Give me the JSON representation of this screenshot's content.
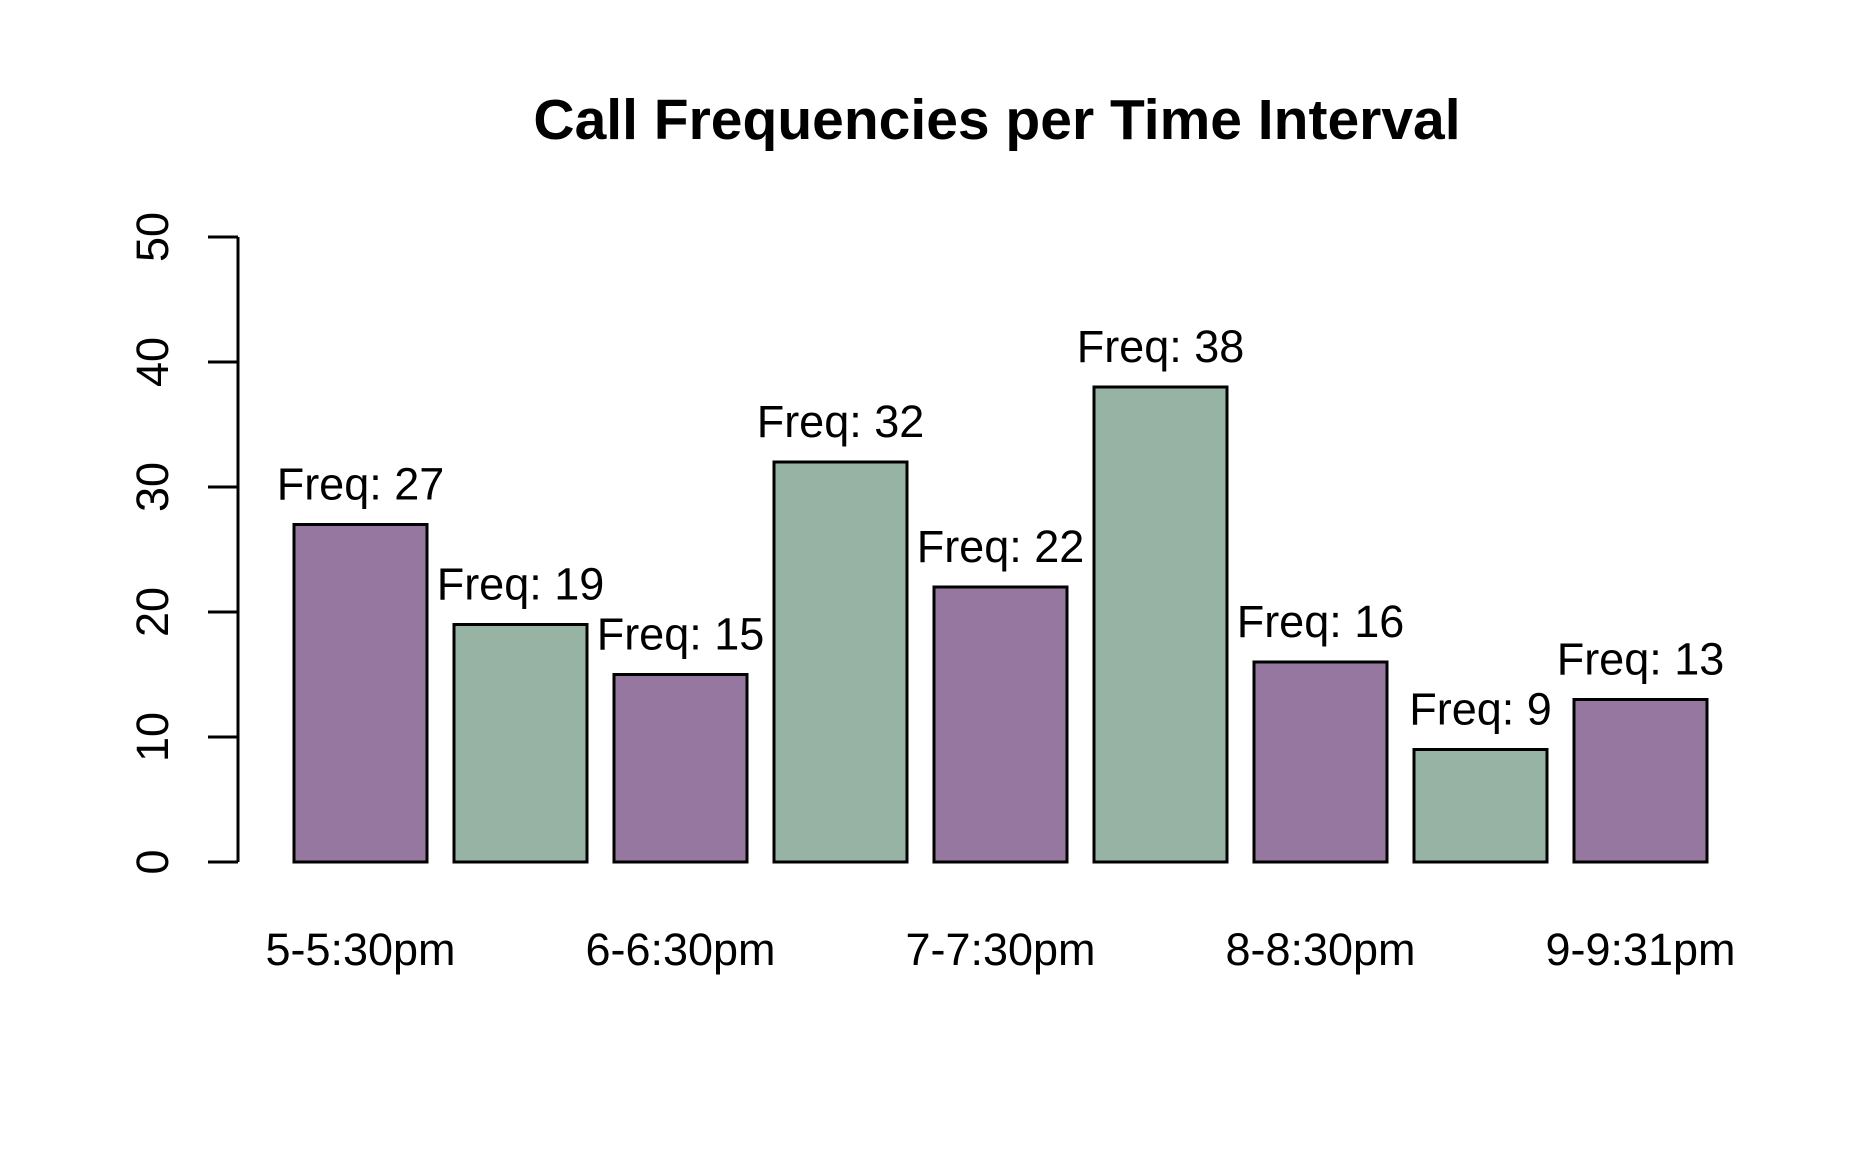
{
  "chart_data": {
    "type": "bar",
    "title": "Call Frequencies per Time Interval",
    "xlabel": "",
    "ylabel": "",
    "ylim": [
      0,
      50
    ],
    "yticks": [
      "0",
      "10",
      "20",
      "30",
      "40",
      "50"
    ],
    "grid": false,
    "values": [
      27,
      19,
      15,
      32,
      22,
      38,
      16,
      9,
      13
    ],
    "data_labels": [
      "Freq: 27",
      "Freq: 19",
      "Freq: 15",
      "Freq: 32",
      "Freq: 22",
      "Freq: 38",
      "Freq: 16",
      "Freq: 9",
      "Freq: 13"
    ],
    "category_labels": [
      {
        "bar_index": 0,
        "label": "5-5:30pm"
      },
      {
        "bar_index": 2,
        "label": "6-6:30pm"
      },
      {
        "bar_index": 4,
        "label": "7-7:30pm"
      },
      {
        "bar_index": 6,
        "label": "8-8:30pm"
      },
      {
        "bar_index": 8,
        "label": "9-9:31pm"
      }
    ],
    "bar_colors": [
      "#9677a0",
      "#97b3a3",
      "#9677a0",
      "#97b3a3",
      "#9677a0",
      "#97b3a3",
      "#9677a0",
      "#97b3a3",
      "#9677a0"
    ]
  }
}
